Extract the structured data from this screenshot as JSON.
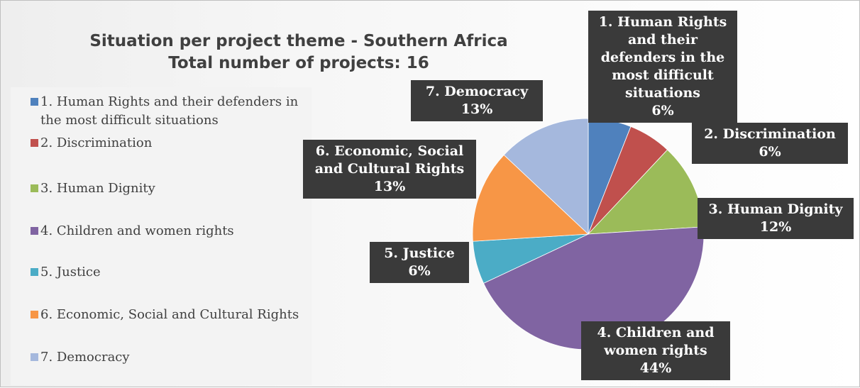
{
  "chart_data": {
    "type": "pie",
    "title": "Situation per project theme - Southern Africa",
    "subtitle": "Total number of projects: 16",
    "legend_position": "left",
    "slices": [
      {
        "label": "1. Human Rights and their defenders in the most difficult situations",
        "chart_label": "1. Human Rights and their defenders in the most difficult situations",
        "value": 6,
        "pct_label": "6%",
        "color": "#4f81bd"
      },
      {
        "label": "2. Discrimination",
        "chart_label": "2. Discrimination",
        "value": 6,
        "pct_label": "6%",
        "color": "#c0504d"
      },
      {
        "label": "3. Human Dignity",
        "chart_label": "3. Human Dignity",
        "value": 12,
        "pct_label": "12%",
        "color": "#9bbb59"
      },
      {
        "label": "4. Children and women rights",
        "chart_label": "4. Children and women rights",
        "value": 44,
        "pct_label": "44%",
        "color": "#8064a2"
      },
      {
        "label": "5. Justice",
        "chart_label": "5. Justice",
        "value": 6,
        "pct_label": "6%",
        "color": "#4bacc6"
      },
      {
        "label": "6. Economic, Social and Cultural Rights",
        "chart_label": "6. Economic, Social and Cultural Rights",
        "value": 13,
        "pct_label": "13%",
        "color": "#f79646"
      },
      {
        "label": "7. Democracy",
        "chart_label": "7. Democracy",
        "value": 13,
        "pct_label": "13%",
        "color": "#a5b8dd"
      }
    ]
  }
}
